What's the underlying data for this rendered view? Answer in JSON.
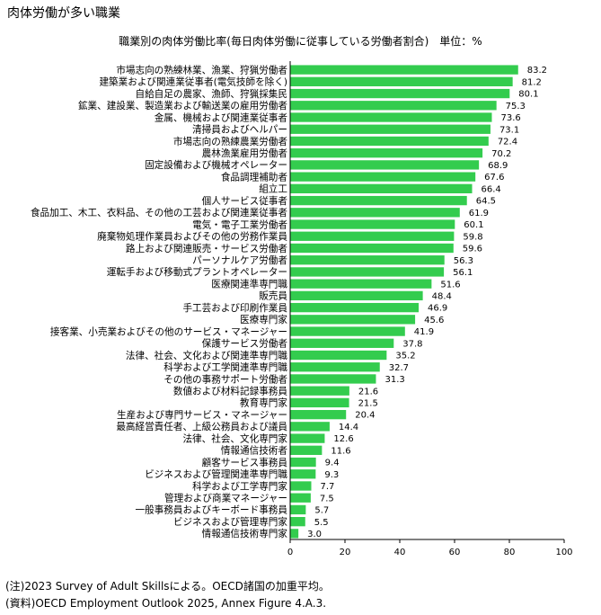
{
  "header": {
    "title": "肉体労働が多い職業",
    "subtitle": "職業別の肉体労働比率(毎日肉体労働に従事している労働者割合)　単位：%"
  },
  "footer": {
    "note": "(注)2023 Survey of Adult Skillsによる。OECD諸国の加重平均。",
    "source": "(資料)OECD Employment Outlook 2025, Annex Figure 4.A.3."
  },
  "chart_data": {
    "type": "bar",
    "orientation": "horizontal",
    "title": "",
    "xlabel": "",
    "ylabel": "",
    "xlim": [
      0,
      100
    ],
    "ticks": [
      0,
      20,
      40,
      60,
      80,
      100
    ],
    "grid": false,
    "bar_color": "#33cc4e",
    "categories": [
      "市場志向の熟練林業、漁業、狩猟労働者",
      "建築業および関連業従事者(電気技師を除く)",
      "自給自足の農家、漁師、狩猟採集民",
      "鉱業、建設業、製造業および輸送業の雇用労働者",
      "金属、機械および関連業従事者",
      "清掃員およびヘルパー",
      "市場志向の熟練農業労働者",
      "農林漁業雇用労働者",
      "固定設備および機械オペレーター",
      "食品調理補助者",
      "組立工",
      "個人サービス従事者",
      "食品加工、木工、衣料品、その他の工芸および関連業従事者",
      "電気・電子工業労働者",
      "廃棄物処理作業員およびその他の労務作業員",
      "路上および関連販売・サービス労働者",
      "パーソナルケア労働者",
      "運転手および移動式プラントオペレーター",
      "医療関連準専門職",
      "販売員",
      "手工芸および印刷作業員",
      "医療専門家",
      "接客業、小売業およびその他のサービス・マネージャー",
      "保護サービス労働者",
      "法律、社会、文化および関連準専門職",
      "科学および工学関連準専門職",
      "その他の事務サポート労働者",
      "数値および材料記録事務員",
      "教育専門家",
      "生産および専門サービス・マネージャー",
      "最高経営責任者、上級公務員および議員",
      "法律、社会、文化専門家",
      "情報通信技術者",
      "顧客サービス事務員",
      "ビジネスおよび管理関連準専門職",
      "科学および工学専門家",
      "管理および商業マネージャー",
      "一般事務員およびキーボード事務員",
      "ビジネスおよび管理専門家",
      "情報通信技術専門家"
    ],
    "values": [
      83.2,
      81.2,
      80.1,
      75.3,
      73.6,
      73.1,
      72.4,
      70.2,
      68.9,
      67.6,
      66.4,
      64.5,
      61.9,
      60.1,
      59.8,
      59.6,
      56.3,
      56.1,
      51.6,
      48.4,
      46.9,
      45.6,
      41.9,
      37.8,
      35.2,
      32.7,
      31.3,
      21.6,
      21.5,
      20.4,
      14.4,
      12.6,
      11.6,
      9.4,
      9.3,
      7.7,
      7.5,
      5.7,
      5.5,
      3.0
    ]
  }
}
